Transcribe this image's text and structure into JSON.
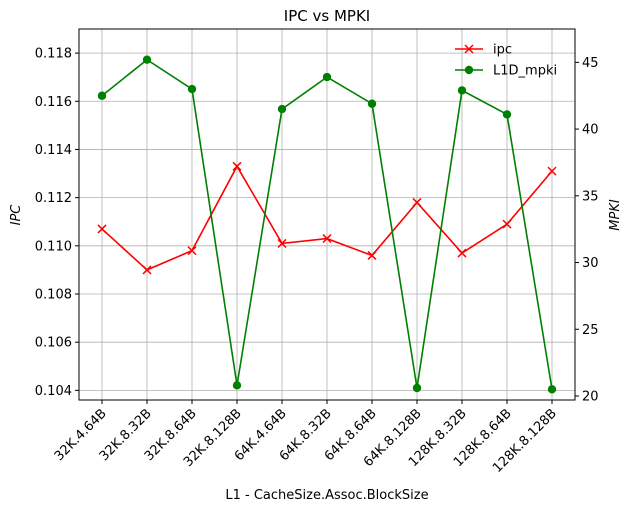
{
  "chart_data": {
    "type": "line",
    "title": "IPC vs MPKI",
    "xlabel": "L1 - CacheSize.Assoc.BlockSize",
    "ylabel_left": "IPC",
    "ylabel_right": "MPKI",
    "categories": [
      "32K.4.64B",
      "32K.8.32B",
      "32K.8.64B",
      "32K.8.128B",
      "64K.4.64B",
      "64K.8.32B",
      "64K.8.64B",
      "64K.8.128B",
      "128K.8.32B",
      "128K.8.64B",
      "128K.8.128B"
    ],
    "ylim_left": [
      0.1036,
      0.119
    ],
    "yticks_left": [
      "0.104",
      "0.106",
      "0.108",
      "0.110",
      "0.112",
      "0.114",
      "0.116",
      "0.118"
    ],
    "ylim_right": [
      19.7,
      47.5
    ],
    "yticks_right": [
      "20",
      "25",
      "30",
      "35",
      "40",
      "45"
    ],
    "grid": true,
    "legend_position": "top-right",
    "series": [
      {
        "name": "ipc",
        "axis": "left",
        "color": "#ff0000",
        "marker": "x",
        "values": [
          0.1107,
          0.109,
          0.1098,
          0.1133,
          0.1101,
          0.1103,
          0.1096,
          0.1118,
          0.1097,
          0.1109,
          0.1131
        ]
      },
      {
        "name": "L1D_mpki",
        "axis": "right",
        "color": "#008000",
        "marker": "o",
        "values": [
          42.5,
          45.2,
          43.0,
          20.8,
          41.5,
          43.9,
          41.9,
          20.6,
          42.9,
          41.1,
          20.5
        ]
      }
    ]
  }
}
